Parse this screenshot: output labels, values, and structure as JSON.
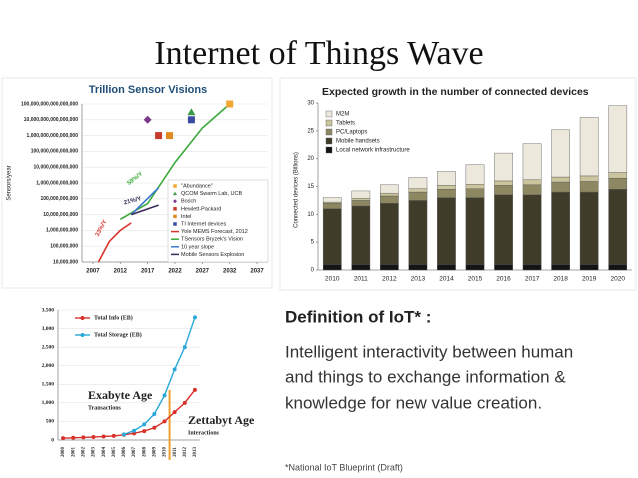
{
  "title": "Internet of Things Wave",
  "chart_data": [
    {
      "type": "line",
      "title": "Trillion Sensor Visions",
      "y_label": "Sensors/year",
      "log_scale": true,
      "grid": true,
      "xlim": [
        2005,
        2039
      ],
      "xticks": [
        2007,
        2012,
        2017,
        2022,
        2027,
        2032,
        2037
      ],
      "ylim": [
        10000000,
        100000000000000000
      ],
      "yticks": [
        {
          "value": 10000000,
          "label": "10,000,000"
        },
        {
          "value": 100000000,
          "label": "100,000,000"
        },
        {
          "value": 1000000000,
          "label": "1,000,000,000"
        },
        {
          "value": 10000000000,
          "label": "10,000,000,000"
        },
        {
          "value": 100000000000,
          "label": "100,000,000,000"
        },
        {
          "value": 1000000000000,
          "label": "1,000,000,000,000"
        },
        {
          "value": 10000000000000,
          "label": "10,000,000,000,000"
        },
        {
          "value": 100000000000000,
          "label": "100,000,000,000,000"
        },
        {
          "value": 1000000000000000,
          "label": "1,000,000,000,000,000"
        },
        {
          "value": 10000000000000000,
          "label": "10,000,000,000,000,000"
        },
        {
          "value": 100000000000000000,
          "label": "100,000,000,000,000,000"
        }
      ],
      "points": [
        {
          "name": "\"Abundance\"",
          "color": "#f0a830",
          "marker": "square",
          "x": 2032,
          "y": 100000000000000000
        },
        {
          "name": "QCOM Swarm Lab, UCB",
          "color": "#3a9a4a",
          "marker": "triangle",
          "x": 2025,
          "y": 30000000000000000
        },
        {
          "name": "Bosch",
          "color": "#7a3a8a",
          "marker": "diamond",
          "x": 2017,
          "y": 10000000000000000
        },
        {
          "name": "Hewlett-Packard",
          "color": "#c83a2a",
          "marker": "square",
          "x": 2019,
          "y": 1000000000000000
        },
        {
          "name": "Intel",
          "color": "#e08a20",
          "marker": "square",
          "x": 2021,
          "y": 1000000000000000
        },
        {
          "name": "TI Internet devices",
          "color": "#3a4aa0",
          "marker": "square",
          "x": 2025,
          "y": 10000000000000000
        }
      ],
      "series": [
        {
          "name": "Yole MEMS Forecast, 2012",
          "color": "#d8332a",
          "x": [
            2008,
            2010,
            2012,
            2014
          ],
          "values": [
            10000000,
            200000000,
            1000000000,
            3000000000
          ]
        },
        {
          "name": "TSensors Bryzek's Vision",
          "color": "#3aa83a",
          "x": [
            2012,
            2017,
            2022,
            2027,
            2032
          ],
          "values": [
            5000000000,
            50000000000,
            20000000000000,
            3000000000000000,
            100000000000000000
          ]
        },
        {
          "name": "10 year slope",
          "color": "#3a7ad0",
          "x": [
            2014,
            2019
          ],
          "values": [
            10000000000,
            500000000000
          ]
        },
        {
          "name": "Mobile Sensors Explosion",
          "color": "#3a2a5a",
          "x": [
            2014,
            2019
          ],
          "values": [
            10000000000,
            40000000000
          ]
        }
      ],
      "annotations": [
        "33%/Y",
        "59%/Y",
        "21%/Y"
      ]
    },
    {
      "type": "bar",
      "stacked": true,
      "title": "Expected growth in the number of connected devices",
      "y_label": "Connected devices (Billions)",
      "categories": [
        "2010",
        "2011",
        "2012",
        "2013",
        "2014",
        "2015",
        "2016",
        "2017",
        "2018",
        "2019",
        "2020"
      ],
      "ylim": [
        0,
        30
      ],
      "yticks": [
        0,
        5,
        10,
        15,
        20,
        25,
        30
      ],
      "series": [
        {
          "name": "M2M",
          "color": "#ece8dc",
          "values": [
            0.8,
            1.3,
            1.5,
            2,
            2.5,
            3.5,
            5,
            6.5,
            8.5,
            10.5,
            12
          ]
        },
        {
          "name": "Tablets",
          "color": "#cbc59e",
          "values": [
            0.2,
            0.4,
            0.5,
            0.6,
            0.7,
            0.8,
            0.8,
            0.9,
            0.9,
            1,
            1
          ]
        },
        {
          "name": "PC/Laptops",
          "color": "#8e8862",
          "values": [
            1,
            1,
            1.3,
            1.5,
            1.5,
            1.6,
            1.7,
            1.8,
            1.8,
            1.9,
            2
          ]
        },
        {
          "name": "Mobile handsets",
          "color": "#403c2a",
          "values": [
            10,
            10.5,
            11,
            11.5,
            12,
            12,
            12.5,
            12.5,
            13,
            13,
            13.5
          ]
        },
        {
          "name": "Local network infrastructure",
          "color": "#141414",
          "values": [
            1,
            1,
            1,
            1,
            1,
            1,
            1,
            1,
            1,
            1,
            1
          ]
        }
      ]
    },
    {
      "type": "line",
      "grid": true,
      "categories": [
        "2000",
        "2001",
        "2002",
        "2003",
        "2004",
        "2005",
        "2006",
        "2007",
        "2008",
        "2009",
        "2010",
        "2011",
        "2012",
        "2013"
      ],
      "ylim": [
        0,
        3500
      ],
      "yticks": [
        0,
        500,
        {
          "value": 1000,
          "label": "1,000"
        },
        {
          "value": 1500,
          "label": "1,500"
        },
        {
          "value": 2000,
          "label": "2,000"
        },
        {
          "value": 2500,
          "label": "2,500"
        },
        {
          "value": 3000,
          "label": "3,000"
        },
        {
          "value": 3500,
          "label": "3,500"
        }
      ],
      "series": [
        {
          "name": "Total Info (EB)",
          "color": "#d8302a",
          "values": [
            50,
            60,
            70,
            80,
            95,
            110,
            140,
            180,
            240,
            330,
            500,
            750,
            1000,
            1350
          ]
        },
        {
          "name": "Total Storage (EB)",
          "color": "#2aa8d8",
          "values": [
            null,
            null,
            null,
            null,
            null,
            null,
            150,
            250,
            420,
            700,
            1200,
            1900,
            2500,
            3300
          ]
        }
      ],
      "annotations": [
        "Exabyte Age",
        "Transactions",
        "Zettabyt Age",
        "Interactions"
      ]
    }
  ],
  "definition": {
    "heading": "Definition of IoT* :",
    "lines": [
      "Intelligent interactivity between human",
      "and things to exchange information &",
      "knowledge for new value creation."
    ],
    "footnote": "*National IoT Blueprint (Draft)"
  }
}
